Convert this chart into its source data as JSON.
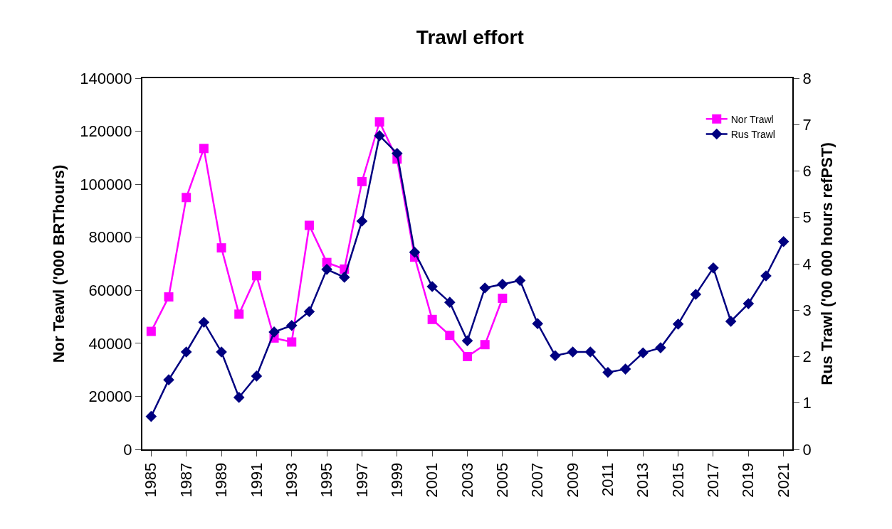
{
  "chart_data": {
    "type": "line",
    "title": "Trawl effort",
    "ylabel": "Nor Teawl ('000 BRThours)",
    "y2label": "Rus Trawl ('00 000 hours refPST)",
    "categories": [
      "1985",
      null,
      "1987",
      null,
      "1989",
      null,
      "1991",
      null,
      "1993",
      null,
      "1995",
      null,
      "1997",
      null,
      "1999",
      null,
      "2001",
      null,
      "2003",
      null,
      "2005",
      null,
      "2007",
      null,
      "2009",
      null,
      "2011",
      null,
      "2013",
      null,
      "2015",
      null,
      "2017",
      null,
      "2019",
      null,
      "2021"
    ],
    "series": [
      {
        "name": "Nor Trawl",
        "color": "#ff00ff",
        "marker": "square",
        "values": [
          44500,
          57500,
          95000,
          113500,
          76000,
          51000,
          65500,
          42000,
          40500,
          84500,
          70500,
          68000,
          101000,
          123500,
          109500,
          72500,
          49000,
          43000,
          35000,
          39500,
          57000,
          null,
          null,
          null,
          null,
          null,
          null,
          null,
          null,
          null,
          null,
          null,
          null,
          null,
          null,
          null,
          null
        ]
      },
      {
        "name": "Rus Trawl",
        "color": "#000080",
        "marker": "diamond",
        "axis": "y2",
        "values": [
          0.71,
          1.5,
          2.1,
          2.74,
          2.1,
          1.12,
          1.58,
          2.53,
          2.67,
          2.97,
          3.88,
          3.71,
          4.92,
          6.76,
          6.38,
          4.25,
          3.51,
          3.17,
          2.34,
          3.48,
          3.56,
          3.64,
          2.71,
          2.02,
          2.1,
          2.1,
          1.66,
          1.73,
          2.08,
          2.19,
          2.7,
          3.34,
          3.91,
          2.76,
          3.14,
          3.74,
          4.48
        ]
      }
    ],
    "ylim": [
      0,
      140000
    ],
    "yticks": [
      0,
      20000,
      40000,
      60000,
      80000,
      100000,
      120000,
      140000
    ],
    "y2lim": [
      0,
      8
    ],
    "y2ticks": [
      0,
      1,
      2,
      3,
      4,
      5,
      6,
      7,
      8
    ],
    "legend": "top right",
    "line_style": "solid"
  }
}
